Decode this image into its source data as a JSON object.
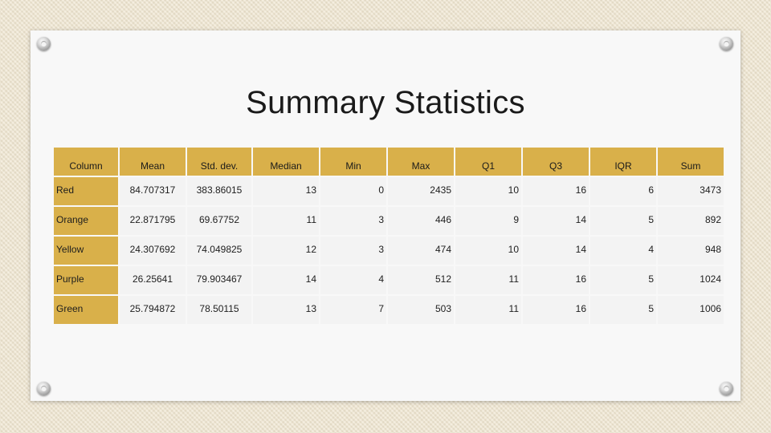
{
  "slide": {
    "title": "Summary Statistics"
  },
  "table": {
    "headers": [
      "Column",
      "Mean",
      "Std. dev.",
      "Median",
      "Min",
      "Max",
      "Q1",
      "Q3",
      "IQR",
      "Sum"
    ],
    "rows": [
      [
        "Red",
        "84.707317",
        "383.86015",
        "13",
        "0",
        "2435",
        "10",
        "16",
        "6",
        "3473"
      ],
      [
        "Orange",
        "22.871795",
        "69.67752",
        "11",
        "3",
        "446",
        "9",
        "14",
        "5",
        "892"
      ],
      [
        "Yellow",
        "24.307692",
        "74.049825",
        "12",
        "3",
        "474",
        "10",
        "14",
        "4",
        "948"
      ],
      [
        "Purple",
        "26.25641",
        "79.903467",
        "14",
        "4",
        "512",
        "11",
        "16",
        "5",
        "1024"
      ],
      [
        "Green",
        "25.794872",
        "78.50115",
        "13",
        "7",
        "503",
        "11",
        "16",
        "5",
        "1006"
      ]
    ]
  },
  "colors": {
    "accent": "#d9b04a",
    "cell_background": "#f3f3f3",
    "card_background": "#f8f8f8",
    "page_background": "#efe5cf"
  }
}
